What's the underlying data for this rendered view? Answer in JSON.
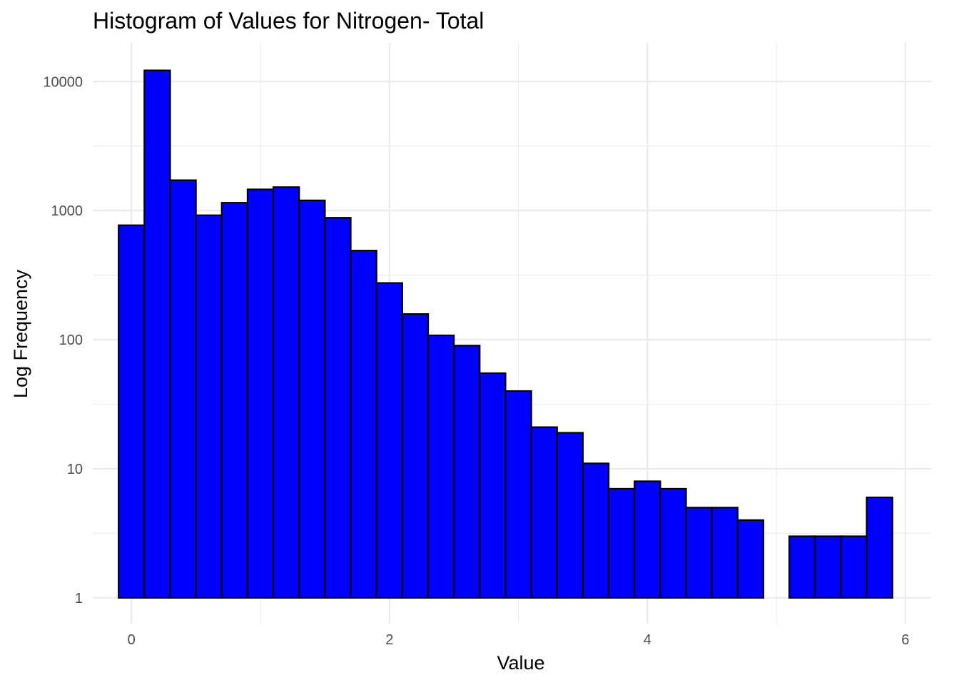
{
  "chart_data": {
    "type": "bar",
    "subtype": "histogram",
    "title": "Histogram of Values for Nitrogen- Total",
    "xlabel": "Value",
    "ylabel": "Log Frequency",
    "y_scale": "log10",
    "xlim": [
      -0.3,
      6.2
    ],
    "ylim_log10": [
      -0.2,
      4.3
    ],
    "x_ticks": [
      {
        "value": 0,
        "label": "0"
      },
      {
        "value": 2,
        "label": "2"
      },
      {
        "value": 4,
        "label": "4"
      },
      {
        "value": 6,
        "label": "6"
      }
    ],
    "y_ticks": [
      {
        "value": 1,
        "label": "1"
      },
      {
        "value": 10,
        "label": "10"
      },
      {
        "value": 100,
        "label": "100"
      },
      {
        "value": 1000,
        "label": "1000"
      },
      {
        "value": 10000,
        "label": "10000"
      }
    ],
    "grid": true,
    "bar_fill": "#0000ff",
    "bar_edge": "#000000",
    "bins": [
      {
        "x0": -0.1,
        "x1": 0.1,
        "count": 770
      },
      {
        "x0": 0.1,
        "x1": 0.3,
        "count": 12200
      },
      {
        "x0": 0.3,
        "x1": 0.5,
        "count": 1720
      },
      {
        "x0": 0.5,
        "x1": 0.7,
        "count": 920
      },
      {
        "x0": 0.7,
        "x1": 0.9,
        "count": 1150
      },
      {
        "x0": 0.9,
        "x1": 1.1,
        "count": 1460
      },
      {
        "x0": 1.1,
        "x1": 1.3,
        "count": 1520
      },
      {
        "x0": 1.3,
        "x1": 1.5,
        "count": 1200
      },
      {
        "x0": 1.5,
        "x1": 1.7,
        "count": 880
      },
      {
        "x0": 1.7,
        "x1": 1.9,
        "count": 490
      },
      {
        "x0": 1.9,
        "x1": 2.1,
        "count": 275
      },
      {
        "x0": 2.1,
        "x1": 2.3,
        "count": 158
      },
      {
        "x0": 2.3,
        "x1": 2.5,
        "count": 108
      },
      {
        "x0": 2.5,
        "x1": 2.7,
        "count": 90
      },
      {
        "x0": 2.7,
        "x1": 2.9,
        "count": 55
      },
      {
        "x0": 2.9,
        "x1": 3.1,
        "count": 40
      },
      {
        "x0": 3.1,
        "x1": 3.3,
        "count": 21
      },
      {
        "x0": 3.3,
        "x1": 3.5,
        "count": 19
      },
      {
        "x0": 3.5,
        "x1": 3.7,
        "count": 11
      },
      {
        "x0": 3.7,
        "x1": 3.9,
        "count": 7
      },
      {
        "x0": 3.9,
        "x1": 4.1,
        "count": 8
      },
      {
        "x0": 4.1,
        "x1": 4.3,
        "count": 7
      },
      {
        "x0": 4.3,
        "x1": 4.5,
        "count": 5
      },
      {
        "x0": 4.5,
        "x1": 4.7,
        "count": 5
      },
      {
        "x0": 4.7,
        "x1": 4.9,
        "count": 4
      },
      {
        "x0": 4.9,
        "x1": 5.1,
        "count": 0
      },
      {
        "x0": 5.1,
        "x1": 5.3,
        "count": 3
      },
      {
        "x0": 5.3,
        "x1": 5.5,
        "count": 3
      },
      {
        "x0": 5.5,
        "x1": 5.7,
        "count": 3
      },
      {
        "x0": 5.7,
        "x1": 5.9,
        "count": 6
      }
    ]
  }
}
